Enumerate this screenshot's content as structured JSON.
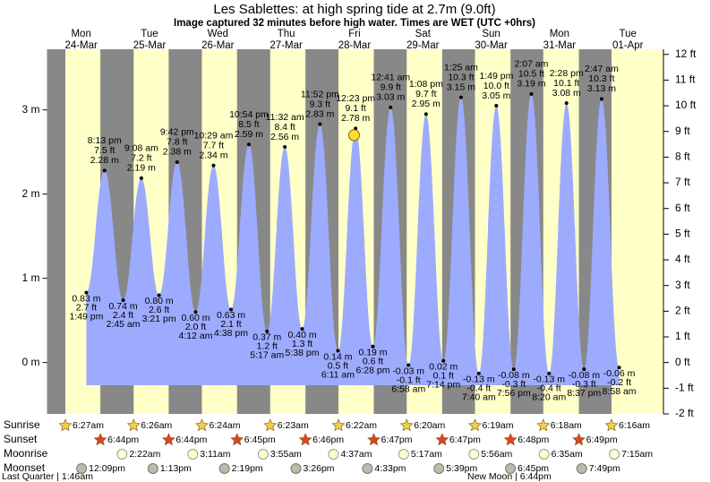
{
  "chart_data": {
    "type": "tide",
    "title": "Les Sablettes: at high  spring tide at 2.7m (9.0ft)",
    "subtitle": "Image captured 32 minutes before high water. Times are WET (UTC +0hrs)",
    "ylim": [
      -0.61,
      3.72
    ],
    "yticks": [
      {
        "value": 0,
        "label": "0 m"
      },
      {
        "value": 1,
        "label": "1 m"
      },
      {
        "value": 2,
        "label": "2 m"
      },
      {
        "value": 3,
        "label": "3 m"
      }
    ],
    "y2lim": [
      -2.0,
      12.2
    ],
    "y2ticks": [
      {
        "value": -2,
        "label": "-2 ft"
      },
      {
        "value": -1,
        "label": "-1 ft"
      },
      {
        "value": 0,
        "label": "0 ft"
      },
      {
        "value": 1,
        "label": "1 ft"
      },
      {
        "value": 2,
        "label": "2 ft"
      },
      {
        "value": 3,
        "label": "3 ft"
      },
      {
        "value": 4,
        "label": "4 ft"
      },
      {
        "value": 5,
        "label": "5 ft"
      },
      {
        "value": 6,
        "label": "6 ft"
      },
      {
        "value": 7,
        "label": "7 ft"
      },
      {
        "value": 8,
        "label": "8 ft"
      },
      {
        "value": 9,
        "label": "9 ft"
      },
      {
        "value": 10,
        "label": "10 ft"
      },
      {
        "value": 11,
        "label": "11 ft"
      },
      {
        "value": 12,
        "label": "12 ft"
      }
    ],
    "colors": {
      "night": "#888888",
      "day": "#ffffc8",
      "water": "#9dabff",
      "day_label": "#dd0000"
    },
    "row_labels": {
      "sunrise": "Sunrise",
      "sunset": "Sunset",
      "moonrise": "Moonrise",
      "moonset": "Moonset"
    },
    "days": [
      {
        "weekday": "Mon",
        "date": "24-Mar",
        "sunrise": "6:27am",
        "sunset": "6:44pm",
        "moonset": "12:09pm",
        "tides": [
          {
            "time": "1:49 pm",
            "m": 0.83,
            "m_label": "0.83 m",
            "ft_label": "2.7 ft"
          },
          {
            "time": "8:13 pm",
            "m": 2.28,
            "m_label": "2.28 m",
            "ft_label": "7.5 ft"
          }
        ]
      },
      {
        "weekday": "Tue",
        "date": "25-Mar",
        "sunrise": "6:26am",
        "sunset": "6:44pm",
        "moonrise": "2:22am",
        "moonset": "1:13pm",
        "tides": [
          {
            "time": "2:45 am",
            "m": 0.74,
            "m_label": "0.74 m",
            "ft_label": "2.4 ft"
          },
          {
            "time": "9:08 am",
            "m": 2.19,
            "m_label": "2.19 m",
            "ft_label": "7.2 ft"
          },
          {
            "time": "3:21 pm",
            "m": 0.8,
            "m_label": "0.80 m",
            "ft_label": "2.6 ft"
          },
          {
            "time": "9:42 pm",
            "m": 2.38,
            "m_label": "2.38 m",
            "ft_label": "7.8 ft"
          }
        ]
      },
      {
        "weekday": "Wed",
        "date": "26-Mar",
        "sunrise": "6:24am",
        "sunset": "6:45pm",
        "moonrise": "3:11am",
        "moonset": "2:19pm",
        "tides": [
          {
            "time": "4:12 am",
            "m": 0.6,
            "m_label": "0.60 m",
            "ft_label": "2.0 ft"
          },
          {
            "time": "10:29 am",
            "m": 2.34,
            "m_label": "2.34 m",
            "ft_label": "7.7 ft"
          },
          {
            "time": "4:38 pm",
            "m": 0.63,
            "m_label": "0.63 m",
            "ft_label": "2.1 ft"
          },
          {
            "time": "10:54 pm",
            "m": 2.59,
            "m_label": "2.59 m",
            "ft_label": "8.5 ft"
          }
        ]
      },
      {
        "weekday": "Thu",
        "date": "27-Mar",
        "sunrise": "6:23am",
        "sunset": "6:46pm",
        "moonrise": "3:55am",
        "moonset": "3:26pm",
        "tides": [
          {
            "time": "5:17 am",
            "m": 0.37,
            "m_label": "0.37 m",
            "ft_label": "1.2 ft"
          },
          {
            "time": "11:32 am",
            "m": 2.56,
            "m_label": "2.56 m",
            "ft_label": "8.4 ft"
          },
          {
            "time": "5:38 pm",
            "m": 0.4,
            "m_label": "0.40 m",
            "ft_label": "1.3 ft"
          },
          {
            "time": "11:52 pm",
            "m": 2.83,
            "m_label": "2.83 m",
            "ft_label": "9.3 ft"
          }
        ]
      },
      {
        "weekday": "Fri",
        "date": "28-Mar",
        "sunrise": "6:22am",
        "sunset": "6:47pm",
        "moonrise": "4:37am",
        "moonset": "4:33pm",
        "now": {
          "m": 2.7,
          "minutes_before_high": 32
        },
        "tides": [
          {
            "time": "6:11 am",
            "m": 0.14,
            "m_label": "0.14 m",
            "ft_label": "0.5 ft"
          },
          {
            "time": "12:23 pm",
            "m": 2.78,
            "m_label": "2.78 m",
            "ft_label": "9.1 ft"
          },
          {
            "time": "6:28 pm",
            "m": 0.19,
            "m_label": "0.19 m",
            "ft_label": "0.6 ft"
          }
        ]
      },
      {
        "weekday": "Sat",
        "date": "29-Mar",
        "sunrise": "6:20am",
        "sunset": "6:47pm",
        "moonrise": "5:17am",
        "moonset": "5:39pm",
        "tides": [
          {
            "time": "12:41 am",
            "m": 3.03,
            "m_label": "3.03 m",
            "ft_label": "9.9 ft"
          },
          {
            "time": "6:58 am",
            "m": -0.03,
            "m_label": "-0.03 m",
            "ft_label": "-0.1 ft"
          },
          {
            "time": "1:08 pm",
            "m": 2.95,
            "m_label": "2.95 m",
            "ft_label": "9.7 ft"
          },
          {
            "time": "7:14 pm",
            "m": 0.02,
            "m_label": "0.02 m",
            "ft_label": "0.1 ft"
          }
        ]
      },
      {
        "weekday": "Sun",
        "date": "30-Mar",
        "sunrise": "6:19am",
        "sunset": "6:48pm",
        "moonrise": "5:56am",
        "moonset": "6:45pm",
        "tides": [
          {
            "time": "1:25 am",
            "m": 3.15,
            "m_label": "3.15 m",
            "ft_label": "10.3 ft"
          },
          {
            "time": "7:40 am",
            "m": -0.13,
            "m_label": "-0.13 m",
            "ft_label": "-0.4 ft"
          },
          {
            "time": "1:49 pm",
            "m": 3.05,
            "m_label": "3.05 m",
            "ft_label": "10.0 ft"
          },
          {
            "time": "7:56 pm",
            "m": -0.08,
            "m_label": "-0.08 m",
            "ft_label": "-0.3 ft"
          }
        ]
      },
      {
        "weekday": "Mon",
        "date": "31-Mar",
        "sunrise": "6:18am",
        "sunset": "6:49pm",
        "moonrise": "6:35am",
        "moonset": "7:49pm",
        "tides": [
          {
            "time": "2:07 am",
            "m": 3.19,
            "m_label": "3.19 m",
            "ft_label": "10.5 ft"
          },
          {
            "time": "8:20 am",
            "m": -0.13,
            "m_label": "-0.13 m",
            "ft_label": "-0.4 ft"
          },
          {
            "time": "2:28 pm",
            "m": 3.08,
            "m_label": "3.08 m",
            "ft_label": "10.1 ft"
          },
          {
            "time": "8:37 pm",
            "m": -0.08,
            "m_label": "-0.08 m",
            "ft_label": "-0.3 ft"
          }
        ]
      },
      {
        "weekday": "Tue",
        "date": "01-Apr",
        "sunrise": "6:16am",
        "moonrise": "7:15am",
        "tides": [
          {
            "time": "2:47 am",
            "m": 3.13,
            "m_label": "3.13 m",
            "ft_label": "10.3 ft"
          },
          {
            "time": "8:58 am",
            "m": -0.06,
            "m_label": "-0.06 m",
            "ft_label": "-0.2 ft"
          }
        ]
      }
    ],
    "moon_phases": [
      "Last Quarter | 1:46am",
      "New Moon | 6:44pm"
    ]
  }
}
